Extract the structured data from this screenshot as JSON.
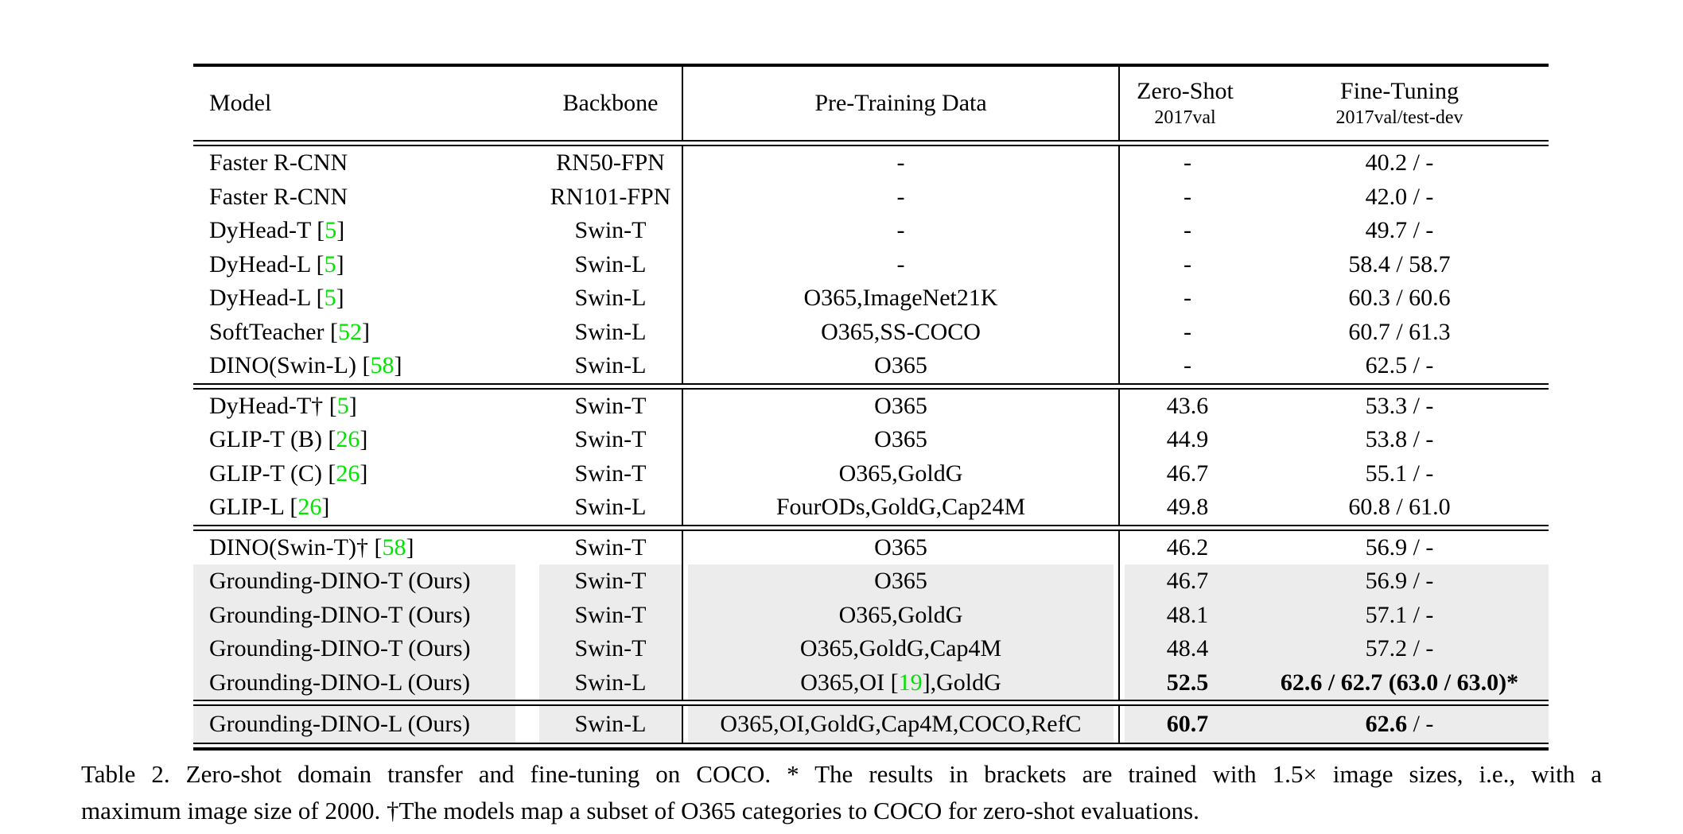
{
  "table": {
    "header": {
      "model": "Model",
      "backbone": "Backbone",
      "pretrain": "Pre-Training Data",
      "zeroshot_title": "Zero-Shot",
      "zeroshot_sub": "2017val",
      "finetune_title": "Fine-Tuning",
      "finetune_sub": "2017val/test-dev"
    },
    "colors": {
      "highlight_row": "#ececec",
      "citation_green": "#00e400",
      "text": "#000000",
      "rule": "#000000"
    },
    "sections": [
      {
        "rows": [
          {
            "model": [
              {
                "t": "Faster R-CNN"
              }
            ],
            "backbone": "RN50-FPN",
            "pretrain": [
              {
                "t": "-"
              }
            ],
            "zeroshot": [
              {
                "t": "-"
              }
            ],
            "finetune": [
              {
                "t": "40.2 / -"
              }
            ],
            "highlight": false
          },
          {
            "model": [
              {
                "t": "Faster R-CNN"
              }
            ],
            "backbone": "RN101-FPN",
            "pretrain": [
              {
                "t": "-"
              }
            ],
            "zeroshot": [
              {
                "t": "-"
              }
            ],
            "finetune": [
              {
                "t": "42.0 / -"
              }
            ],
            "highlight": false
          },
          {
            "model": [
              {
                "t": "DyHead-T ["
              },
              {
                "t": "5",
                "g": true
              },
              {
                "t": "]"
              }
            ],
            "backbone": "Swin-T",
            "pretrain": [
              {
                "t": "-"
              }
            ],
            "zeroshot": [
              {
                "t": "-"
              }
            ],
            "finetune": [
              {
                "t": "49.7 / -"
              }
            ],
            "highlight": false
          },
          {
            "model": [
              {
                "t": "DyHead-L ["
              },
              {
                "t": "5",
                "g": true
              },
              {
                "t": "]"
              }
            ],
            "backbone": "Swin-L",
            "pretrain": [
              {
                "t": "-"
              }
            ],
            "zeroshot": [
              {
                "t": "-"
              }
            ],
            "finetune": [
              {
                "t": "58.4 / 58.7"
              }
            ],
            "highlight": false
          },
          {
            "model": [
              {
                "t": "DyHead-L ["
              },
              {
                "t": "5",
                "g": true
              },
              {
                "t": "]"
              }
            ],
            "backbone": "Swin-L",
            "pretrain": [
              {
                "t": "O365,ImageNet21K"
              }
            ],
            "zeroshot": [
              {
                "t": "-"
              }
            ],
            "finetune": [
              {
                "t": "60.3 / 60.6"
              }
            ],
            "highlight": false
          },
          {
            "model": [
              {
                "t": "SoftTeacher ["
              },
              {
                "t": "52",
                "g": true
              },
              {
                "t": "]"
              }
            ],
            "backbone": "Swin-L",
            "pretrain": [
              {
                "t": "O365,SS-COCO"
              }
            ],
            "zeroshot": [
              {
                "t": "-"
              }
            ],
            "finetune": [
              {
                "t": "60.7 / 61.3"
              }
            ],
            "highlight": false
          },
          {
            "model": [
              {
                "t": "DINO(Swin-L) ["
              },
              {
                "t": "58",
                "g": true
              },
              {
                "t": "]"
              }
            ],
            "backbone": "Swin-L",
            "pretrain": [
              {
                "t": "O365"
              }
            ],
            "zeroshot": [
              {
                "t": "-"
              }
            ],
            "finetune": [
              {
                "t": "62.5 / -"
              }
            ],
            "highlight": false
          }
        ]
      },
      {
        "rows": [
          {
            "model": [
              {
                "t": "DyHead-T† ["
              },
              {
                "t": "5",
                "g": true
              },
              {
                "t": "]"
              }
            ],
            "backbone": "Swin-T",
            "pretrain": [
              {
                "t": "O365"
              }
            ],
            "zeroshot": [
              {
                "t": "43.6"
              }
            ],
            "finetune": [
              {
                "t": "53.3 / -"
              }
            ],
            "highlight": false
          },
          {
            "model": [
              {
                "t": "GLIP-T (B) ["
              },
              {
                "t": "26",
                "g": true
              },
              {
                "t": "]"
              }
            ],
            "backbone": "Swin-T",
            "pretrain": [
              {
                "t": "O365"
              }
            ],
            "zeroshot": [
              {
                "t": "44.9"
              }
            ],
            "finetune": [
              {
                "t": "53.8 / -"
              }
            ],
            "highlight": false
          },
          {
            "model": [
              {
                "t": "GLIP-T (C) ["
              },
              {
                "t": "26",
                "g": true
              },
              {
                "t": "]"
              }
            ],
            "backbone": "Swin-T",
            "pretrain": [
              {
                "t": "O365,GoldG"
              }
            ],
            "zeroshot": [
              {
                "t": "46.7"
              }
            ],
            "finetune": [
              {
                "t": "55.1 / -"
              }
            ],
            "highlight": false
          },
          {
            "model": [
              {
                "t": "GLIP-L ["
              },
              {
                "t": "26",
                "g": true
              },
              {
                "t": "]"
              }
            ],
            "backbone": "Swin-L",
            "pretrain": [
              {
                "t": "FourODs,GoldG,Cap24M"
              }
            ],
            "zeroshot": [
              {
                "t": "49.8"
              }
            ],
            "finetune": [
              {
                "t": "60.8 / 61.0"
              }
            ],
            "highlight": false
          }
        ]
      },
      {
        "rows": [
          {
            "model": [
              {
                "t": "DINO(Swin-T)† ["
              },
              {
                "t": "58",
                "g": true
              },
              {
                "t": "]"
              }
            ],
            "backbone": "Swin-T",
            "pretrain": [
              {
                "t": "O365"
              }
            ],
            "zeroshot": [
              {
                "t": "46.2"
              }
            ],
            "finetune": [
              {
                "t": "56.9 / -"
              }
            ],
            "highlight": false
          },
          {
            "model": [
              {
                "t": "Grounding-DINO-T (Ours)"
              }
            ],
            "backbone": "Swin-T",
            "pretrain": [
              {
                "t": "O365"
              }
            ],
            "zeroshot": [
              {
                "t": "46.7"
              }
            ],
            "finetune": [
              {
                "t": "56.9 / -"
              }
            ],
            "highlight": true
          },
          {
            "model": [
              {
                "t": "Grounding-DINO-T (Ours)"
              }
            ],
            "backbone": "Swin-T",
            "pretrain": [
              {
                "t": "O365,GoldG"
              }
            ],
            "zeroshot": [
              {
                "t": "48.1"
              }
            ],
            "finetune": [
              {
                "t": "57.1 / -"
              }
            ],
            "highlight": true
          },
          {
            "model": [
              {
                "t": "Grounding-DINO-T (Ours)"
              }
            ],
            "backbone": "Swin-T",
            "pretrain": [
              {
                "t": "O365,GoldG,Cap4M"
              }
            ],
            "zeroshot": [
              {
                "t": "48.4"
              }
            ],
            "finetune": [
              {
                "t": "57.2 / -"
              }
            ],
            "highlight": true
          },
          {
            "model": [
              {
                "t": "Grounding-DINO-L (Ours)"
              }
            ],
            "backbone": "Swin-L",
            "pretrain": [
              {
                "t": "O365,OI ["
              },
              {
                "t": "19",
                "g": true
              },
              {
                "t": "],GoldG"
              }
            ],
            "zeroshot": [
              {
                "t": "52.5",
                "b": true
              }
            ],
            "finetune": [
              {
                "t": "62.6 / 62.7 (63.0 / 63.0)",
                "b": true
              },
              {
                "t": "*",
                "b": true
              }
            ],
            "highlight": true
          }
        ]
      },
      {
        "rows": [
          {
            "model": [
              {
                "t": "Grounding-DINO-L (Ours)"
              }
            ],
            "backbone": "Swin-L",
            "pretrain": [
              {
                "t": "O365,OI,GoldG,Cap4M,COCO,RefC"
              }
            ],
            "zeroshot": [
              {
                "t": "60.7",
                "b": true
              }
            ],
            "finetune": [
              {
                "t": "62.6",
                "b": true
              },
              {
                "t": " / -"
              }
            ],
            "highlight": true
          }
        ]
      }
    ]
  },
  "caption": {
    "label": "Table 2.",
    "line1": "Zero-shot domain transfer and fine-tuning on COCO. * The results in brackets are trained with 1.5× image sizes, i.e., with a",
    "line2": "maximum image size of 2000. †The models map a subset of O365 categories to COCO for zero-shot evaluations."
  }
}
